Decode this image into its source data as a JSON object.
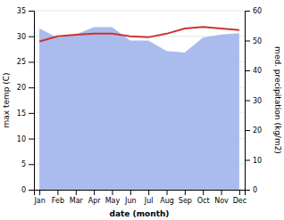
{
  "chart_data": {
    "type": "line",
    "xlabel": "date (month)",
    "ylabel": "max temp (C)",
    "y2label": "med. precipitation (kg/m2)",
    "categories": [
      "Jan",
      "Feb",
      "Mar",
      "Apr",
      "May",
      "Jun",
      "Jul",
      "Aug",
      "Sep",
      "Oct",
      "Nov",
      "Dec"
    ],
    "series": [
      {
        "type": "area",
        "axis": "y2",
        "color": "#aabbee",
        "values": [
          54.0,
          51.0,
          52.0,
          54.5,
          54.5,
          50.0,
          50.0,
          46.5,
          46.0,
          51.0,
          52.0,
          52.5
        ]
      },
      {
        "type": "line",
        "color": "#cc3333",
        "values": [
          29.0,
          30.0,
          30.3,
          30.5,
          30.5,
          30.0,
          29.8,
          30.5,
          31.5,
          31.8,
          31.5,
          31.2
        ]
      }
    ],
    "ylim": [
      0,
      35
    ],
    "yticks": [
      0,
      5,
      10,
      15,
      20,
      25,
      30,
      35
    ],
    "y2lim": [
      0,
      60
    ],
    "y2ticks": [
      0,
      10,
      20,
      30,
      40,
      50,
      60
    ],
    "grid": true
  }
}
